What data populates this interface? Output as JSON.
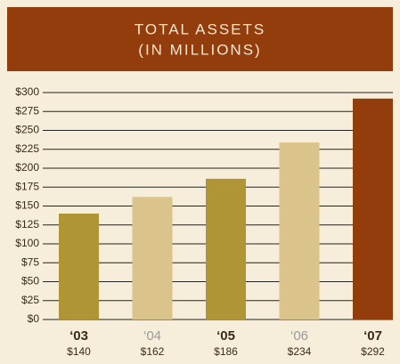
{
  "chart_data": {
    "type": "bar",
    "title": [
      "TOTAL ASSETS",
      "(IN MILLIONS)"
    ],
    "categories": [
      "‘03",
      "‘04",
      "‘05",
      "‘06",
      "‘07"
    ],
    "values": [
      140,
      162,
      186,
      234,
      292
    ],
    "value_labels": [
      "$140",
      "$162",
      "$186",
      "$234",
      "$292"
    ],
    "colors": [
      "#b09537",
      "#dac48b",
      "#b09537",
      "#dac48b",
      "#943d0c"
    ],
    "ylim": [
      0,
      300
    ],
    "yticks": [
      {
        "value": 0,
        "label": "$0"
      },
      {
        "value": 25,
        "label": "$25"
      },
      {
        "value": 50,
        "label": "$50"
      },
      {
        "value": 75,
        "label": "$75"
      },
      {
        "value": 100,
        "label": "$100"
      },
      {
        "value": 125,
        "label": "$125"
      },
      {
        "value": 150,
        "label": "$150"
      },
      {
        "value": 175,
        "label": "$175"
      },
      {
        "value": 200,
        "label": "$200"
      },
      {
        "value": 225,
        "label": "$225"
      },
      {
        "value": 250,
        "label": "$250"
      },
      {
        "value": 275,
        "label": "$275"
      },
      {
        "value": 300,
        "label": "$300"
      }
    ],
    "grid": true
  }
}
